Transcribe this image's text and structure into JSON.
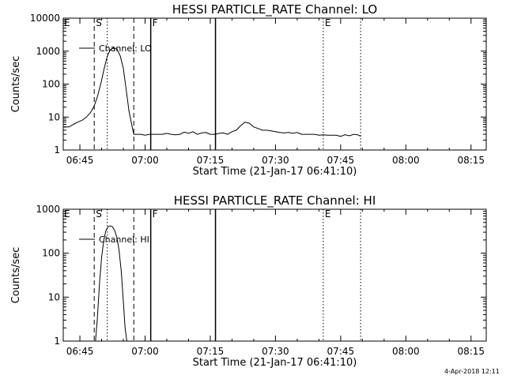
{
  "footer_date": "4-Apr-2018 12:11",
  "chart_data": [
    {
      "type": "line",
      "title": "HESSI PARTICLE_RATE Channel: LO",
      "xlabel": "Start Time (21-Jan-17 06:41:10)",
      "ylabel": "Counts/sec",
      "yscale": "log",
      "xlim_minutes": [
        401.17,
        498.5
      ],
      "ylim": [
        1,
        10000
      ],
      "x_ticks": [
        {
          "label": "06:45",
          "m": 405
        },
        {
          "label": "07:00",
          "m": 420
        },
        {
          "label": "07:15",
          "m": 435
        },
        {
          "label": "07:30",
          "m": 450
        },
        {
          "label": "07:45",
          "m": 465
        },
        {
          "label": "08:00",
          "m": 480
        },
        {
          "label": "08:15",
          "m": 495
        }
      ],
      "y_ticks": [
        {
          "label": "1",
          "v": 1
        },
        {
          "label": "10",
          "v": 10
        },
        {
          "label": "100",
          "v": 100
        },
        {
          "label": "1000",
          "v": 1000
        },
        {
          "label": "10000",
          "v": 10000
        }
      ],
      "legend": {
        "label": "Channel: LO",
        "position": "top-left"
      },
      "markers": [
        {
          "label": "S",
          "m": 408.3,
          "style": "dashed"
        },
        {
          "label": "",
          "m": 411.3,
          "style": "dotted"
        },
        {
          "label": "",
          "m": 417.4,
          "style": "dashed"
        },
        {
          "label": "F",
          "m": 421.3,
          "style": "solid"
        },
        {
          "label": "",
          "m": 436.2,
          "style": "solid"
        },
        {
          "label": "E",
          "m": 461.0,
          "style": "dotted"
        },
        {
          "label": "",
          "m": 469.6,
          "style": "dotted"
        }
      ],
      "marker_label_top_left": "E",
      "series": [
        {
          "x": [
            401.2,
            402.5,
            403.5,
            404.5,
            405.5,
            406.5,
            407.5,
            408.3,
            409.0,
            409.8,
            410.6,
            411.3,
            412.0,
            412.8,
            413.6,
            414.3,
            415.0,
            415.7,
            416.3,
            416.9,
            417.4,
            418.0,
            419.0,
            420.0,
            421.0,
            422.0,
            423.0,
            424.0,
            425.0,
            426.0,
            427.0,
            428.0,
            429.0,
            430.0,
            431.0,
            432.0,
            433.0,
            434.0,
            435.0,
            436.0,
            437.0,
            438.0,
            439.0,
            440.0,
            441.0,
            442.0,
            443.0,
            444.0,
            445.0,
            446.0,
            447.0,
            448.0,
            449.0,
            450.0,
            451.0,
            452.0,
            453.0,
            454.0,
            455.0,
            456.0,
            457.0,
            458.0,
            459.0,
            460.0,
            461.0,
            462.0,
            463.0,
            464.0,
            465.0,
            466.0,
            467.0,
            468.0,
            469.0,
            469.6
          ],
          "y": [
            5,
            5,
            6,
            7,
            8,
            10,
            14,
            22,
            40,
            100,
            300,
            700,
            1100,
            1300,
            1100,
            700,
            300,
            60,
            15,
            6,
            3,
            3,
            3,
            2.8,
            3,
            3,
            3,
            3,
            3.2,
            3,
            2.9,
            3,
            3.5,
            3.2,
            3.6,
            3,
            3.3,
            3.4,
            3,
            3,
            3.2,
            3.3,
            3,
            3.6,
            4,
            5.5,
            7,
            6.5,
            5,
            4.5,
            4,
            4,
            3.8,
            3.6,
            3.4,
            3.3,
            3.4,
            3.2,
            3.4,
            3,
            3,
            3,
            3,
            2.8,
            2.9,
            2.8,
            2.8,
            2.8,
            2.6,
            2.9,
            2.7,
            3,
            2.9,
            2.6
          ]
        }
      ]
    },
    {
      "type": "line",
      "title": "HESSI PARTICLE_RATE Channel: HI",
      "xlabel": "Start Time (21-Jan-17 06:41:10)",
      "ylabel": "Counts/sec",
      "yscale": "log",
      "xlim_minutes": [
        401.17,
        498.5
      ],
      "ylim": [
        1,
        1000
      ],
      "x_ticks": [
        {
          "label": "06:45",
          "m": 405
        },
        {
          "label": "07:00",
          "m": 420
        },
        {
          "label": "07:15",
          "m": 435
        },
        {
          "label": "07:30",
          "m": 450
        },
        {
          "label": "07:45",
          "m": 465
        },
        {
          "label": "08:00",
          "m": 480
        },
        {
          "label": "08:15",
          "m": 495
        }
      ],
      "y_ticks": [
        {
          "label": "1",
          "v": 1
        },
        {
          "label": "10",
          "v": 10
        },
        {
          "label": "100",
          "v": 100
        },
        {
          "label": "1000",
          "v": 1000
        }
      ],
      "legend": {
        "label": "Channel: HI",
        "position": "top-left"
      },
      "markers": [
        {
          "label": "S",
          "m": 408.3,
          "style": "dashed"
        },
        {
          "label": "",
          "m": 411.3,
          "style": "dotted"
        },
        {
          "label": "",
          "m": 417.4,
          "style": "dashed"
        },
        {
          "label": "F",
          "m": 421.3,
          "style": "solid"
        },
        {
          "label": "",
          "m": 436.2,
          "style": "solid"
        },
        {
          "label": "E",
          "m": 461.0,
          "style": "dotted"
        },
        {
          "label": "",
          "m": 469.6,
          "style": "dotted"
        }
      ],
      "marker_label_top_left": "E",
      "series": [
        {
          "x": [
            408.6,
            409.0,
            409.5,
            410.0,
            410.5,
            411.0,
            411.5,
            412.0,
            412.5,
            413.0,
            413.5,
            414.0,
            414.5,
            415.0,
            415.4,
            415.8
          ],
          "y": [
            1,
            3,
            20,
            80,
            200,
            330,
            400,
            420,
            400,
            330,
            230,
            120,
            40,
            8,
            2,
            1
          ]
        }
      ]
    }
  ]
}
